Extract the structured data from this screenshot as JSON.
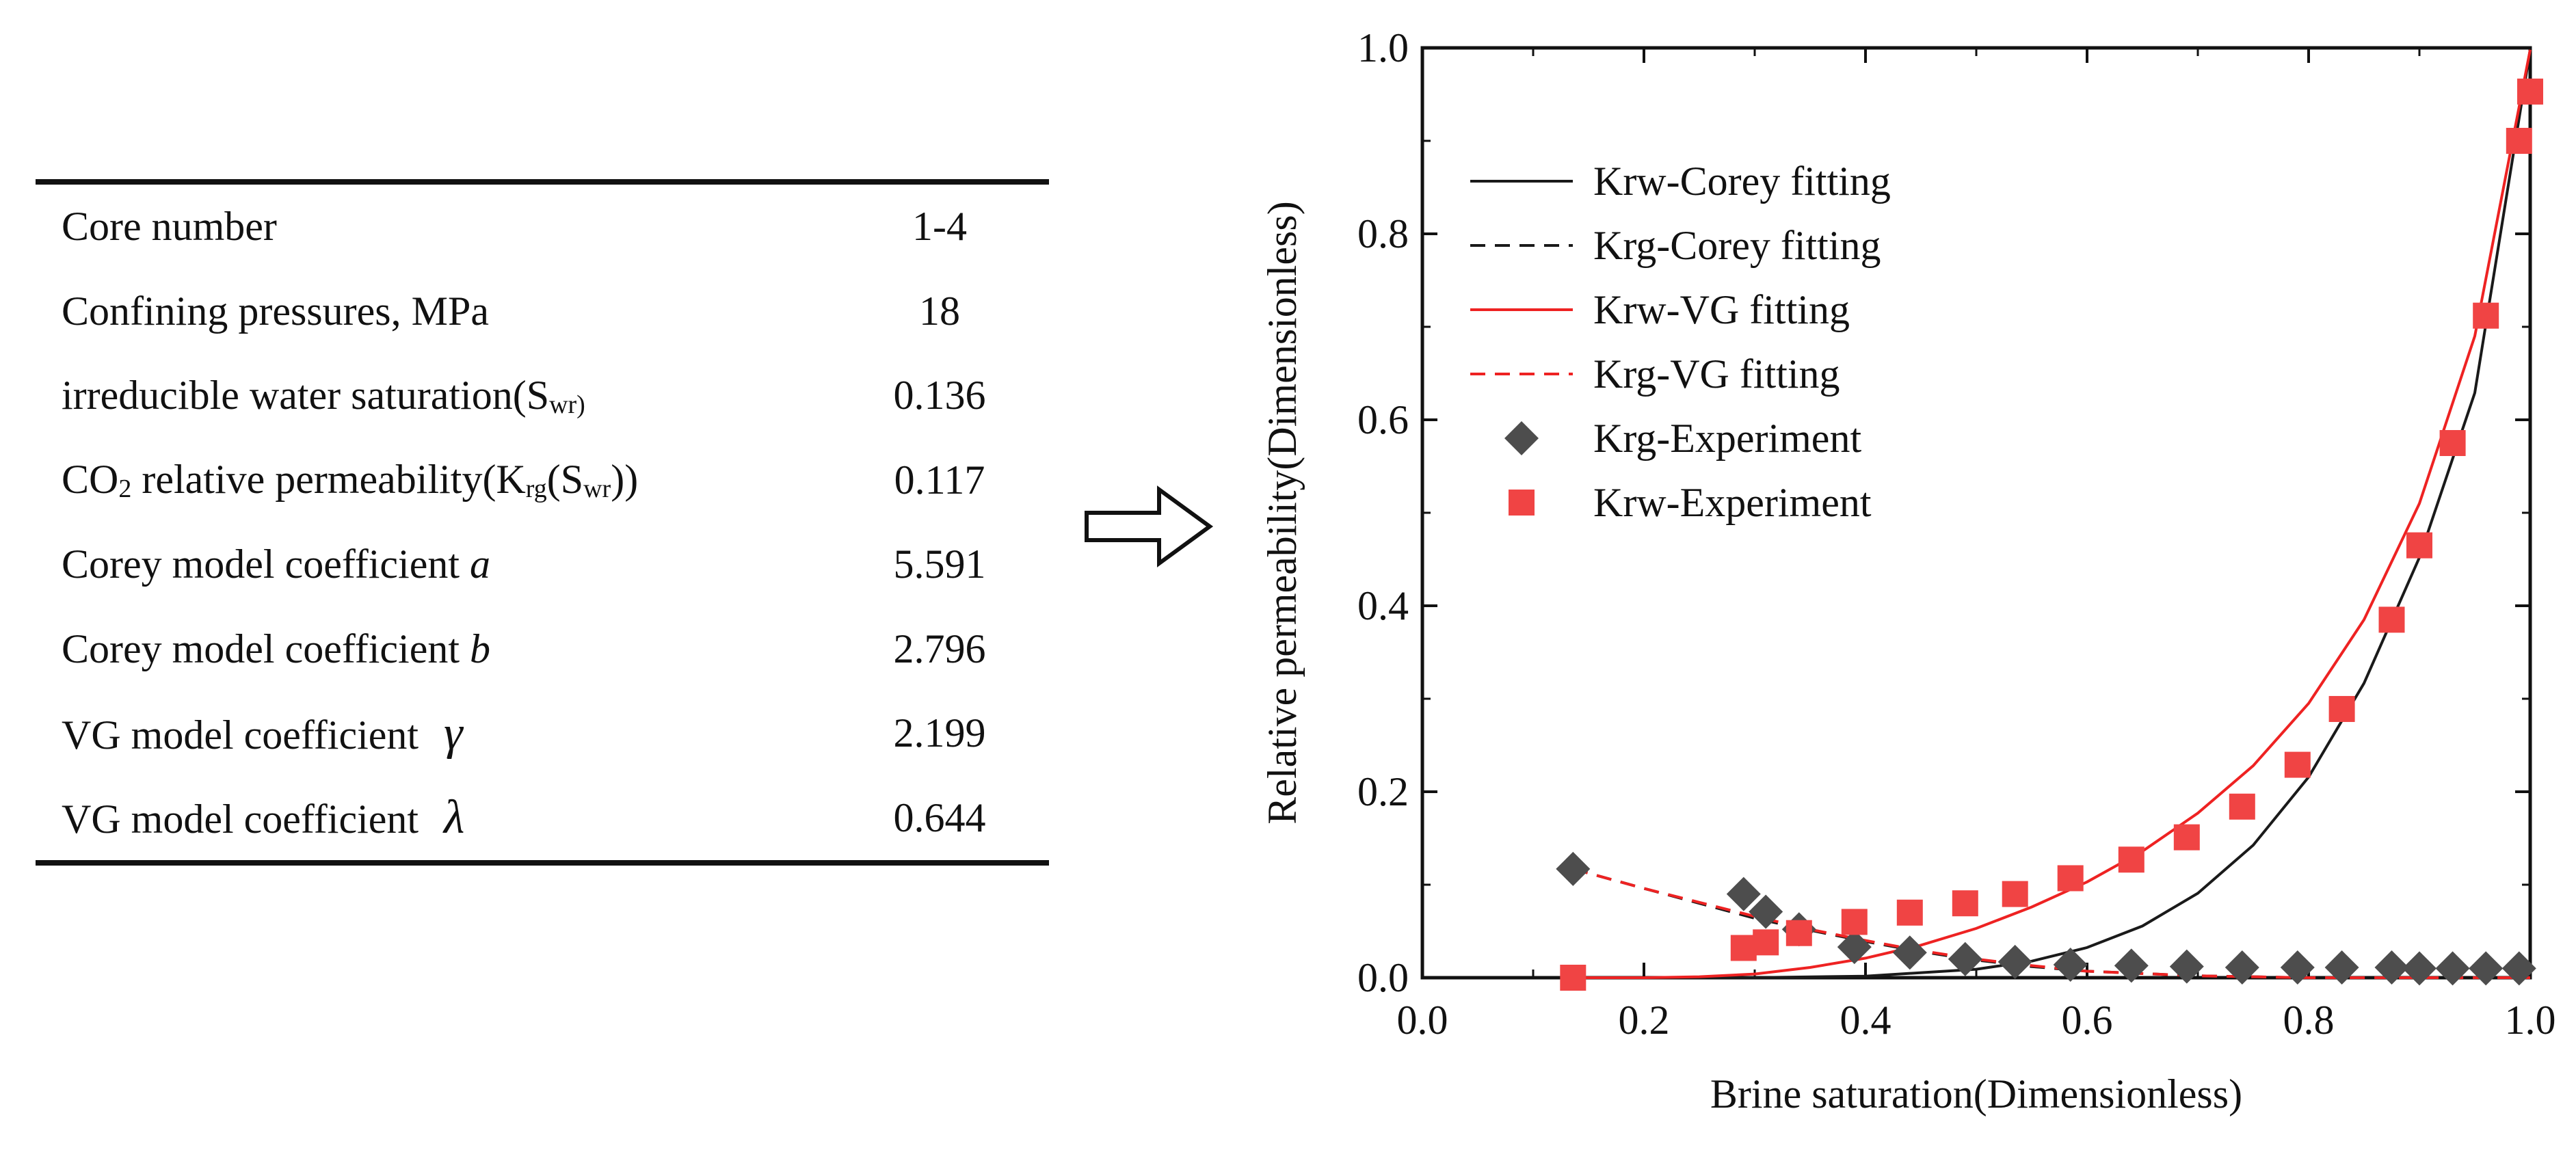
{
  "table": {
    "rows": [
      {
        "label": "Core number",
        "value": "1-4"
      },
      {
        "label": "Confining pressures, MPa",
        "value": "18"
      },
      {
        "label_main": "irreducible water saturation(S",
        "label_sub": "wr)",
        "label_end": "",
        "value": "0.136"
      },
      {
        "label_pre": "CO",
        "label_sub1": "2",
        "label_mid": " relative permeability(K",
        "label_sub2": "rg",
        "label_mid2": "(S",
        "label_sub3": "wr",
        "label_end": "))",
        "value": "0.117"
      },
      {
        "label": "Corey model coefficient ",
        "symbol": "a",
        "value": "5.591"
      },
      {
        "label": "Corey model coefficient ",
        "symbol": "b",
        "value": "2.796"
      },
      {
        "label": "VG model coefficient ",
        "symbol": "γ",
        "value": "2.199"
      },
      {
        "label": "VG model coefficient ",
        "symbol": "λ",
        "value": "0.644"
      }
    ]
  },
  "chart_data": {
    "type": "scatter",
    "xlabel": "Brine saturation(Dimensionless)",
    "ylabel": "Relative permeability(Dimensionless)",
    "xlim": [
      0.0,
      1.0
    ],
    "ylim": [
      0.0,
      1.0
    ],
    "xticks": [
      "0.0",
      "0.2",
      "0.4",
      "0.6",
      "0.8",
      "1.0"
    ],
    "yticks": [
      "0.0",
      "0.2",
      "0.4",
      "0.6",
      "0.8",
      "1.0"
    ],
    "legend_position": "top-left",
    "colors": {
      "black": "#1a1a1a",
      "red": "#ee2222",
      "red_marker": "#f04444",
      "gray_marker": "#4d4d4d"
    },
    "series": [
      {
        "name": "Krw-Corey fitting",
        "style": "solid",
        "color": "#1a1a1a",
        "x": [
          0.136,
          0.2,
          0.3,
          0.4,
          0.5,
          0.55,
          0.6,
          0.65,
          0.7,
          0.75,
          0.8,
          0.85,
          0.9,
          0.95,
          1.0
        ],
        "y": [
          0.0,
          0.0,
          0.0001,
          0.0017,
          0.0091,
          0.0178,
          0.0324,
          0.0556,
          0.0908,
          0.1426,
          0.2158,
          0.3167,
          0.4519,
          0.629,
          0.998
        ]
      },
      {
        "name": "Krg-Corey fitting",
        "style": "dashed",
        "color": "#1a1a1a",
        "x": [
          0.136,
          0.2,
          0.25,
          0.3,
          0.35,
          0.4,
          0.45,
          0.5,
          0.55,
          0.6,
          0.7,
          0.8,
          0.9,
          1.0
        ],
        "y": [
          0.117,
          0.096,
          0.08,
          0.064,
          0.051,
          0.039,
          0.028,
          0.019,
          0.012,
          0.007,
          0.002,
          0.0,
          0.0,
          0.0
        ]
      },
      {
        "name": "Krw-VG fitting",
        "style": "solid",
        "color": "#ee2222",
        "x": [
          0.136,
          0.2,
          0.25,
          0.3,
          0.35,
          0.4,
          0.45,
          0.5,
          0.55,
          0.6,
          0.65,
          0.7,
          0.75,
          0.8,
          0.85,
          0.9,
          0.95,
          1.0
        ],
        "y": [
          0.0,
          0.0,
          0.001,
          0.004,
          0.011,
          0.021,
          0.035,
          0.053,
          0.076,
          0.103,
          0.136,
          0.177,
          0.228,
          0.295,
          0.385,
          0.51,
          0.69,
          0.998
        ]
      },
      {
        "name": "Krg-VG fitting",
        "style": "dashed",
        "color": "#ee2222",
        "x": [
          0.136,
          0.2,
          0.25,
          0.3,
          0.35,
          0.4,
          0.45,
          0.5,
          0.55,
          0.6,
          0.7,
          0.8,
          0.9,
          1.0
        ],
        "y": [
          0.117,
          0.096,
          0.081,
          0.066,
          0.052,
          0.04,
          0.029,
          0.02,
          0.013,
          0.007,
          0.002,
          0.0,
          0.0,
          0.0
        ]
      },
      {
        "name": "Krg-Experiment",
        "style": "diamond",
        "color": "#4d4d4d",
        "x": [
          0.136,
          0.29,
          0.31,
          0.34,
          0.39,
          0.44,
          0.49,
          0.535,
          0.585,
          0.64,
          0.69,
          0.74,
          0.79,
          0.83,
          0.875,
          0.9,
          0.93,
          0.96,
          0.99
        ],
        "y": [
          0.117,
          0.09,
          0.071,
          0.052,
          0.033,
          0.027,
          0.02,
          0.017,
          0.014,
          0.013,
          0.012,
          0.011,
          0.011,
          0.011,
          0.011,
          0.01,
          0.01,
          0.01,
          0.01
        ]
      },
      {
        "name": "Krw-Experiment",
        "style": "square",
        "color": "#f04444",
        "x": [
          0.136,
          0.29,
          0.31,
          0.34,
          0.39,
          0.44,
          0.49,
          0.535,
          0.585,
          0.64,
          0.69,
          0.74,
          0.79,
          0.83,
          0.875,
          0.9,
          0.93,
          0.96,
          0.99,
          1.0
        ],
        "y": [
          0.0,
          0.032,
          0.038,
          0.048,
          0.06,
          0.07,
          0.08,
          0.09,
          0.107,
          0.127,
          0.151,
          0.184,
          0.229,
          0.289,
          0.385,
          0.465,
          0.575,
          0.712,
          0.9,
          0.953
        ]
      }
    ]
  }
}
